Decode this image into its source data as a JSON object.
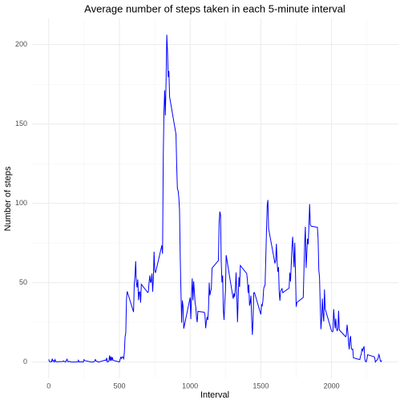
{
  "chart_data": {
    "type": "line",
    "title": "Average number of steps taken in each 5-minute interval",
    "x_label": "Interval",
    "y_label": "Number of steps",
    "color": "#0000ff",
    "x": [
      0,
      5,
      10,
      15,
      20,
      25,
      30,
      35,
      40,
      45,
      50,
      55,
      100,
      105,
      110,
      115,
      120,
      125,
      130,
      135,
      140,
      145,
      150,
      155,
      200,
      205,
      210,
      215,
      220,
      225,
      230,
      235,
      240,
      245,
      250,
      255,
      300,
      305,
      310,
      315,
      320,
      325,
      330,
      335,
      340,
      345,
      350,
      355,
      400,
      405,
      410,
      415,
      420,
      425,
      430,
      435,
      440,
      445,
      450,
      455,
      500,
      505,
      510,
      515,
      520,
      525,
      530,
      535,
      540,
      545,
      550,
      555,
      600,
      605,
      610,
      615,
      620,
      625,
      630,
      635,
      640,
      645,
      650,
      655,
      700,
      705,
      710,
      715,
      720,
      725,
      730,
      735,
      740,
      745,
      750,
      755,
      800,
      805,
      810,
      815,
      820,
      825,
      830,
      835,
      840,
      845,
      850,
      855,
      900,
      905,
      910,
      915,
      920,
      925,
      930,
      935,
      940,
      945,
      950,
      955,
      1000,
      1005,
      1010,
      1015,
      1020,
      1025,
      1030,
      1035,
      1040,
      1045,
      1050,
      1055,
      1100,
      1105,
      1110,
      1115,
      1120,
      1125,
      1130,
      1135,
      1140,
      1145,
      1150,
      1155,
      1200,
      1205,
      1210,
      1215,
      1220,
      1225,
      1230,
      1235,
      1240,
      1245,
      1250,
      1255,
      1300,
      1305,
      1310,
      1315,
      1320,
      1325,
      1330,
      1335,
      1340,
      1345,
      1350,
      1355,
      1400,
      1405,
      1410,
      1415,
      1420,
      1425,
      1430,
      1435,
      1440,
      1445,
      1450,
      1455,
      1500,
      1505,
      1510,
      1515,
      1520,
      1525,
      1530,
      1535,
      1540,
      1545,
      1550,
      1555,
      1600,
      1605,
      1610,
      1615,
      1620,
      1625,
      1630,
      1635,
      1640,
      1645,
      1650,
      1655,
      1700,
      1705,
      1710,
      1715,
      1720,
      1725,
      1730,
      1735,
      1740,
      1745,
      1750,
      1755,
      1800,
      1805,
      1810,
      1815,
      1820,
      1825,
      1830,
      1835,
      1840,
      1845,
      1850,
      1855,
      1900,
      1905,
      1910,
      1915,
      1920,
      1925,
      1930,
      1935,
      1940,
      1945,
      1950,
      1955,
      2000,
      2005,
      2010,
      2015,
      2020,
      2025,
      2030,
      2035,
      2040,
      2045,
      2050,
      2055,
      2100,
      2105,
      2110,
      2115,
      2120,
      2125,
      2130,
      2135,
      2140,
      2145,
      2150,
      2155,
      2200,
      2205,
      2210,
      2215,
      2220,
      2225,
      2230,
      2235,
      2240,
      2245,
      2250,
      2255,
      2300,
      2305,
      2310,
      2315,
      2320,
      2325,
      2330,
      2335,
      2340,
      2345,
      2350,
      2355
    ],
    "values": [
      1.7,
      0.3,
      0.1,
      0.2,
      0.1,
      2.1,
      0.5,
      0.9,
      0,
      1.5,
      0.3,
      0.1,
      0.3,
      0.7,
      0.2,
      0.3,
      0,
      1.1,
      1.8,
      0.2,
      0.2,
      0.4,
      0.3,
      0,
      0,
      0,
      1.1,
      0,
      0,
      0.1,
      0,
      0.2,
      0,
      0,
      1.5,
      0.9,
      0,
      0,
      0,
      0,
      0.2,
      0.6,
      1.6,
      0.6,
      0.5,
      0.1,
      0,
      0,
      1.2,
      0.9,
      2.6,
      0,
      0.3,
      0.4,
      4.1,
      0.7,
      3.5,
      0.8,
      3.1,
      1.1,
      0,
      1.6,
      3,
      2.2,
      3.3,
      3,
      2.1,
      6,
      16,
      18.3,
      39.5,
      44.5,
      31.5,
      49.3,
      53.8,
      63.5,
      50,
      47,
      52,
      39,
      44,
      44.2,
      37.4,
      49,
      43.8,
      44.4,
      50.5,
      54.5,
      49.9,
      51,
      55.7,
      44.3,
      52.3,
      69.5,
      57.8,
      56.2,
      73.4,
      68.2,
      129.4,
      157.5,
      171.2,
      155.4,
      177.3,
      206.2,
      195.9,
      179.6,
      183.4,
      167,
      143.5,
      124,
      109.1,
      108.1,
      103.7,
      95.9,
      66.2,
      45.2,
      24.8,
      38.8,
      35,
      21.1,
      40.6,
      27,
      42.4,
      52.7,
      38.9,
      50.8,
      44.3,
      37.4,
      34.7,
      28.3,
      25.1,
      31.9,
      31.4,
      29.7,
      21.3,
      25.5,
      28.4,
      26.5,
      33.4,
      50,
      42,
      44.6,
      46,
      59.2,
      63.9,
      87.7,
      94.8,
      92.8,
      63.4,
      50.2,
      54.5,
      32.4,
      26.5,
      37.7,
      45.1,
      67.3,
      42.3,
      39.9,
      43.3,
      41,
      46.2,
      56.4,
      42.8,
      25.1,
      40,
      53.5,
      47.3,
      60.8,
      55.8,
      52,
      43.6,
      48.7,
      35.5,
      37.5,
      41.8,
      27.5,
      17.1,
      26.1,
      43.6,
      43.8,
      30,
      36.1,
      35.5,
      38.8,
      46,
      47.8,
      48.1,
      65.3,
      82.9,
      98.7,
      102.1,
      84,
      62.1,
      64.1,
      74.5,
      63.2,
      56.9,
      59.8,
      43.9,
      38.6,
      44.7,
      45.5,
      46.2,
      43.7,
      46.6,
      56.3,
      50.7,
      61.2,
      72.7,
      78.9,
      68.9,
      59.7,
      75.1,
      56.5,
      34.8,
      37.5,
      40.7,
      58,
      74.7,
      85.3,
      59.3,
      67.8,
      77.7,
      74.2,
      85.3,
      99.5,
      86.6,
      85.6,
      84.9,
      77.8,
      58,
      53.4,
      36.3,
      20.7,
      27.4,
      40,
      30.2,
      25.5,
      45.7,
      33.5,
      19.6,
      19,
      19.3,
      33.3,
      26.8,
      21.2,
      27.3,
      21.3,
      19.5,
      21.3,
      32.3,
      20.2,
      15.9,
      17.2,
      23.5,
      19.2,
      12.5,
      8,
      14.7,
      16.3,
      8.7,
      7.8,
      8.1,
      2.6,
      1.5,
      3.7,
      4.8,
      8.5,
      7.1,
      8.7,
      9.8,
      2.2,
      0.3,
      0.1,
      1.6,
      4.6,
      3.3,
      2.8,
      0,
      0.8,
      1,
      1.6,
      2.6,
      4.7,
      3.3,
      0.6,
      0.2,
      1.1
    ],
    "xlim": [
      -117.75,
      2472.75
    ],
    "xticks": [
      0,
      500,
      1000,
      1500,
      2000
    ],
    "xminor": [
      250,
      750,
      1250,
      1750,
      2250
    ],
    "ylim": [
      -10.3,
      216.5
    ],
    "yticks": [
      0,
      50,
      100,
      150,
      200
    ],
    "yminor": [
      25,
      75,
      125,
      175
    ],
    "grid": true
  }
}
